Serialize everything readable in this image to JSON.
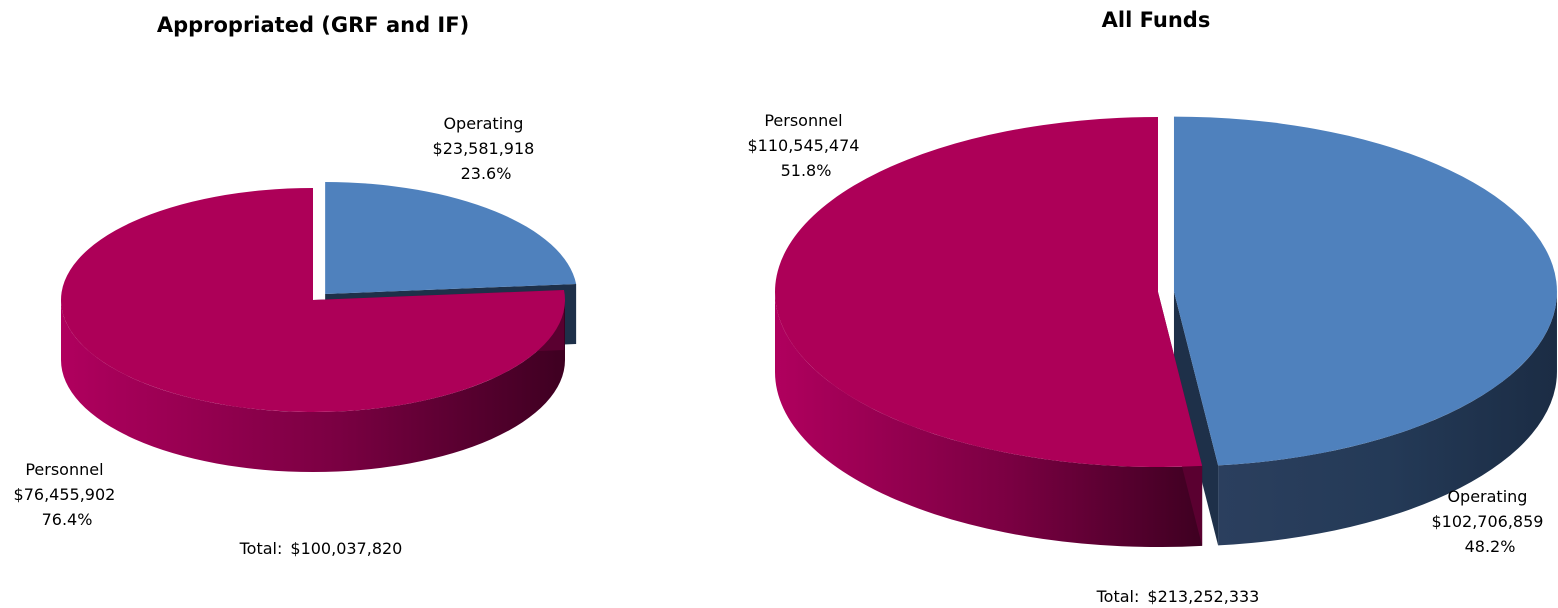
{
  "chart_data": [
    {
      "type": "pie",
      "title": "Appropriated (GRF and IF)",
      "categories": [
        "Personnel",
        "Operating"
      ],
      "values": [
        76455902,
        23581918
      ],
      "value_labels": [
        "$76,455,902",
        "$23,581,918"
      ],
      "percent_labels": [
        "76.4%",
        "23.6%"
      ],
      "total_prefix": "Total:",
      "total_value": "$100,037,820",
      "exploded": "Operating",
      "colors": {
        "Personnel": "#ad0058",
        "Operating": "#4f81bd"
      }
    },
    {
      "type": "pie",
      "title": "All Funds",
      "categories": [
        "Personnel",
        "Operating"
      ],
      "values": [
        110545474,
        102706859
      ],
      "value_labels": [
        "$110,545,474",
        "$102,706,859"
      ],
      "percent_labels": [
        "51.8%",
        "48.2%"
      ],
      "total_prefix": "Total:",
      "total_value": "$213,252,333",
      "exploded": "Operating",
      "colors": {
        "Personnel": "#ad0058",
        "Operating": "#4f81bd"
      }
    }
  ]
}
